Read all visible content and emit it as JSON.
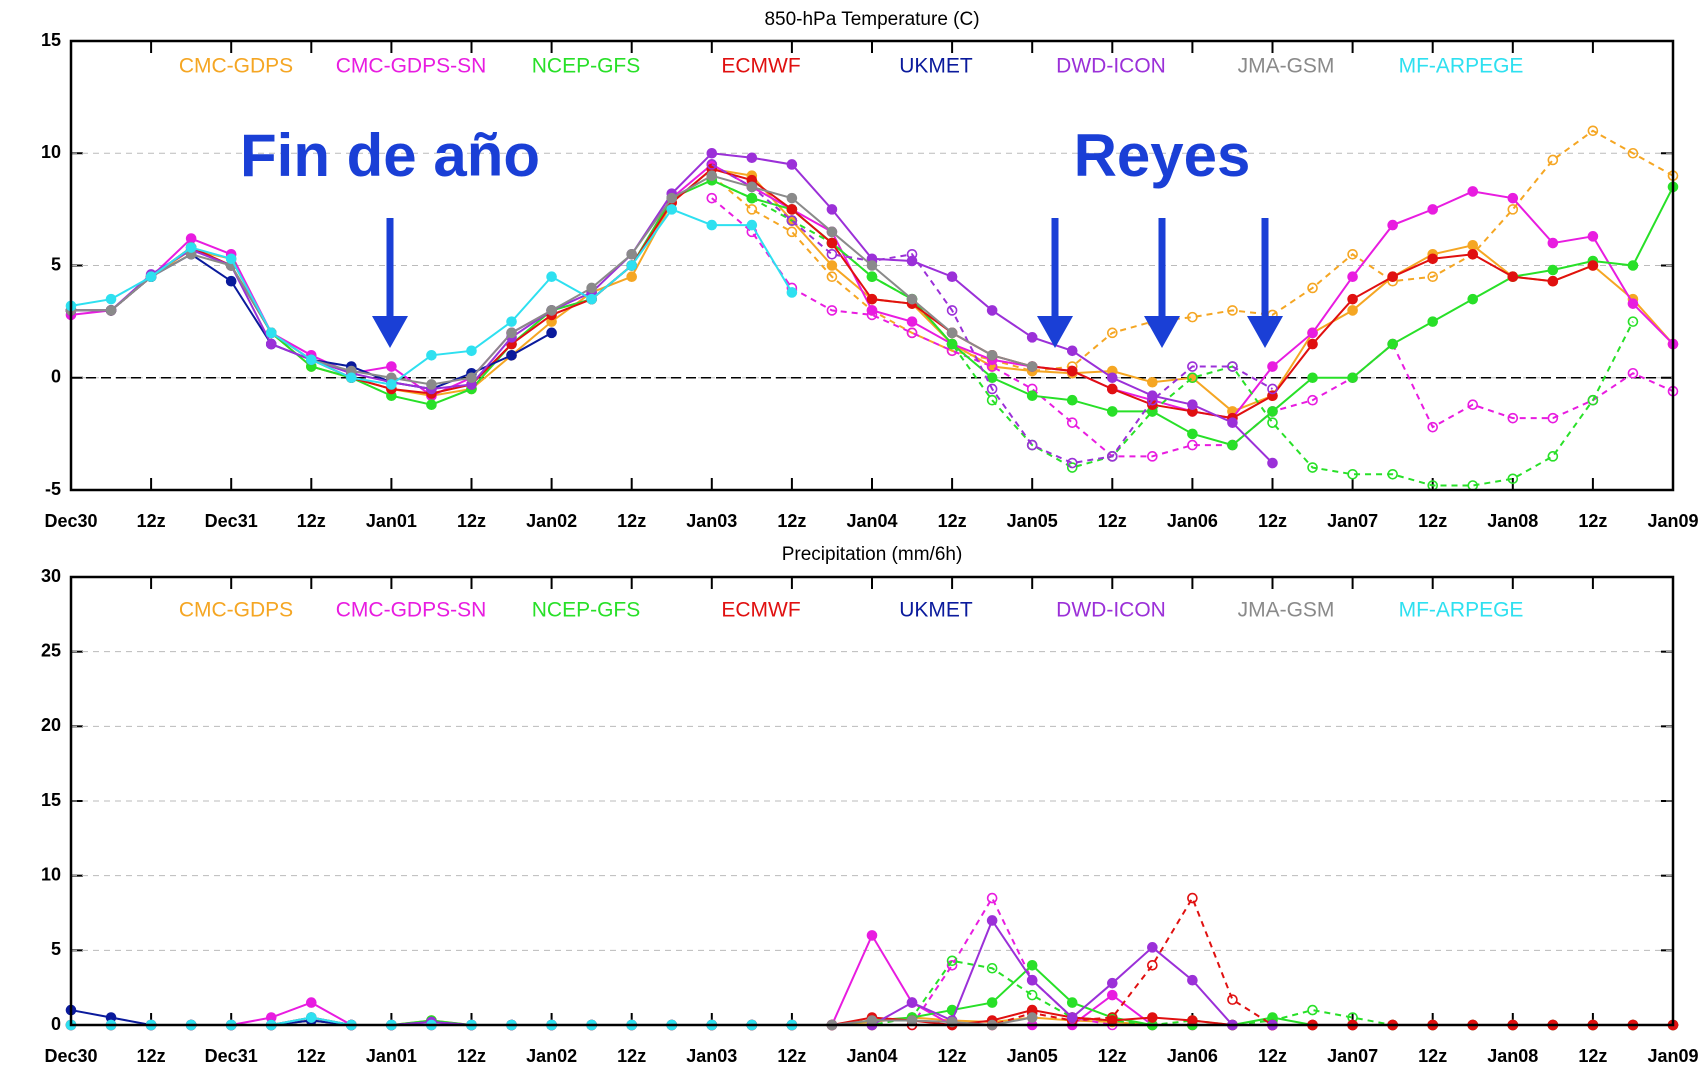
{
  "chart_data": [
    {
      "type": "line",
      "title": "850-hPa Temperature (C)",
      "categories": [
        "Dec30",
        null,
        "12z",
        null,
        "Dec31",
        null,
        "12z",
        null,
        "Jan01",
        null,
        "12z",
        null,
        "Jan02",
        null,
        "12z",
        null,
        "Jan03",
        null,
        "12z",
        null,
        "Jan04",
        null,
        "12z",
        null,
        "Jan05",
        null,
        "12z",
        null,
        "Jan06",
        null,
        "12z",
        null,
        "Jan07",
        null,
        "12z",
        null,
        "Jan08",
        null,
        "12z",
        null,
        "Jan09"
      ],
      "ylim": [
        -5,
        15
      ],
      "yticks": [
        -5,
        0,
        5,
        10,
        15
      ],
      "grid": true,
      "zero_line": true,
      "annotations": [
        "Fin de año",
        "Reyes"
      ],
      "series": [
        {
          "name": "CMC-GDPS",
          "color": "#f5a623",
          "values": [
            3,
            3,
            4.5,
            5.7,
            5.3,
            2,
            0.5,
            0,
            -0.5,
            -0.8,
            -0.5,
            1,
            2.5,
            3.8,
            4.5,
            7.8,
            9.3,
            9,
            7,
            5,
            3.5,
            3.3,
            1.5,
            0.5,
            0.3,
            0.2,
            0.3,
            -0.2,
            0,
            -1.5,
            -0.8,
            2,
            3,
            4.5,
            5.5,
            5.9,
            4.5,
            4.3,
            5,
            3.5,
            1.5
          ],
          "dashed_values": [
            null,
            null,
            null,
            null,
            null,
            null,
            null,
            null,
            null,
            null,
            null,
            null,
            null,
            null,
            null,
            null,
            9,
            7.5,
            6.5,
            4.5,
            3,
            2,
            1.2,
            0.8,
            0.3,
            0.5,
            2,
            2.5,
            2.7,
            3,
            2.8,
            4,
            5.5,
            4.3,
            4.5,
            5.5,
            7.5,
            9.7,
            11,
            10,
            9
          ]
        },
        {
          "name": "CMC-GDPS-SN",
          "color": "#e81ce0",
          "values": [
            2.8,
            3,
            4.5,
            6.2,
            5.5,
            2,
            1,
            0.2,
            0.5,
            -0.8,
            0,
            2,
            3,
            3.5,
            5,
            8,
            9.5,
            8.5,
            7.5,
            6.5,
            3,
            2.5,
            1.5,
            0.8,
            0.5,
            0.3,
            -0.5,
            -1,
            -1.5,
            -1.8,
            0.5,
            2,
            4.5,
            6.8,
            7.5,
            8.3,
            8,
            6,
            6.3,
            3.3,
            1.5
          ],
          "dashed_values": [
            null,
            null,
            null,
            null,
            null,
            null,
            null,
            null,
            null,
            null,
            null,
            null,
            null,
            null,
            null,
            null,
            8,
            6.5,
            4,
            3,
            2.8,
            2,
            1.2,
            0.5,
            -0.5,
            -2,
            -3.5,
            -3.5,
            -3,
            -3,
            -1.5,
            -1,
            0,
            1.5,
            -2.2,
            -1.2,
            -1.8,
            -1.8,
            -1,
            0.2,
            -0.6
          ]
        },
        {
          "name": "NCEP-GFS",
          "color": "#28e028",
          "values": [
            3,
            3,
            4.5,
            5.8,
            5,
            2,
            0.5,
            0,
            -0.8,
            -1.2,
            -0.5,
            1.5,
            3,
            3.5,
            5,
            8,
            8.8,
            8,
            7.5,
            6,
            4.5,
            3.5,
            1.5,
            0,
            -0.8,
            -1,
            -1.5,
            -1.5,
            -2.5,
            -3,
            -1.5,
            0,
            0,
            1.5,
            2.5,
            3.5,
            4.5,
            4.8,
            5.2,
            5,
            8.5
          ],
          "dashed_values": [
            null,
            null,
            null,
            null,
            null,
            null,
            null,
            null,
            null,
            null,
            null,
            null,
            null,
            null,
            null,
            null,
            8.8,
            8,
            7,
            6,
            4.5,
            3.5,
            1.5,
            -1,
            -3,
            -4,
            -3.5,
            -1.5,
            0,
            0.5,
            -2,
            -4,
            -4.3,
            -4.3,
            -4.8,
            -4.8,
            -4.5,
            -3.5,
            -1,
            2.5,
            null
          ]
        },
        {
          "name": "ECMWF",
          "color": "#e01010",
          "values": [
            3,
            3,
            4.5,
            5.8,
            5,
            2,
            0.8,
            0,
            -0.5,
            -0.7,
            -0.3,
            1.5,
            2.8,
            3.5,
            5,
            7.8,
            9.3,
            8.8,
            7.5,
            6,
            3.5,
            3.3,
            2,
            1,
            0.5,
            0.3,
            -0.5,
            -1.2,
            -1.5,
            -1.8,
            -0.8,
            1.5,
            3.5,
            4.5,
            5.3,
            5.5,
            4.5,
            4.3,
            5,
            null,
            null
          ]
        },
        {
          "name": "UKMET",
          "color": "#0a1a9c",
          "values": [
            3,
            3,
            4.5,
            5.5,
            4.3,
            1.5,
            0.8,
            0.5,
            -0.2,
            -0.5,
            0.2,
            1,
            2,
            null,
            null,
            null,
            null,
            null,
            null,
            null,
            null,
            null,
            null,
            null,
            null,
            null,
            null,
            null,
            null,
            null,
            null,
            null,
            null,
            null,
            null,
            null,
            null,
            null,
            null,
            null,
            null
          ]
        },
        {
          "name": "DWD-ICON",
          "color": "#9b30d8",
          "values": [
            3,
            3,
            4.6,
            5.7,
            5,
            1.5,
            0.8,
            0.2,
            -0.2,
            -0.5,
            -0.3,
            1.8,
            3,
            3.8,
            5.5,
            8.2,
            10,
            9.8,
            9.5,
            7.5,
            5.3,
            5.2,
            4.5,
            3,
            1.8,
            1.2,
            0,
            -0.8,
            -1.2,
            -2,
            -3.8,
            null,
            null,
            null,
            null,
            null,
            null,
            null,
            null,
            null,
            null
          ],
          "dashed_values": [
            null,
            null,
            null,
            null,
            null,
            null,
            null,
            null,
            null,
            null,
            null,
            null,
            null,
            null,
            null,
            null,
            9.5,
            8.5,
            7,
            5.5,
            5.2,
            5.5,
            3,
            -0.5,
            -3,
            -3.8,
            -3.5,
            -1,
            0.5,
            0.5,
            -0.5,
            null,
            null,
            null,
            null,
            null,
            null,
            null,
            null,
            null,
            null
          ]
        },
        {
          "name": "JMA-GSM",
          "color": "#8a8a8a",
          "values": [
            3,
            3,
            4.5,
            5.5,
            5,
            2,
            0.8,
            0.3,
            0,
            -0.3,
            0,
            2,
            3,
            4,
            5.5,
            8,
            9,
            8.5,
            8,
            6.5,
            5,
            3.5,
            2,
            1,
            0.5,
            null,
            null,
            null,
            null,
            null,
            null,
            null,
            null,
            null,
            null,
            null,
            null,
            null,
            null,
            null,
            null
          ]
        },
        {
          "name": "MF-ARPEGE",
          "color": "#2ee0f0",
          "values": [
            3.2,
            3.5,
            4.5,
            5.8,
            5.3,
            2,
            0.8,
            0,
            -0.3,
            1,
            1.2,
            2.5,
            4.5,
            3.5,
            5,
            7.5,
            6.8,
            6.8,
            3.8,
            null,
            null,
            null,
            null,
            null,
            null,
            null,
            null,
            null,
            null,
            null,
            null,
            null,
            null,
            null,
            null,
            null,
            null,
            null,
            null,
            null,
            null
          ]
        }
      ]
    },
    {
      "type": "line",
      "title": "Precipitation (mm/6h)",
      "categories": [
        "Dec30",
        null,
        "12z",
        null,
        "Dec31",
        null,
        "12z",
        null,
        "Jan01",
        null,
        "12z",
        null,
        "Jan02",
        null,
        "12z",
        null,
        "Jan03",
        null,
        "12z",
        null,
        "Jan04",
        null,
        "12z",
        null,
        "Jan05",
        null,
        "12z",
        null,
        "Jan06",
        null,
        "12z",
        null,
        "Jan07",
        null,
        "12z",
        null,
        "Jan08",
        null,
        "12z",
        null,
        "Jan09"
      ],
      "ylim": [
        0,
        30
      ],
      "yticks": [
        0,
        5,
        10,
        15,
        20,
        25,
        30
      ],
      "grid": true,
      "series": [
        {
          "name": "CMC-GDPS",
          "color": "#f5a623",
          "values": [
            0,
            0,
            0,
            0,
            0,
            0,
            0.5,
            0,
            0,
            0.3,
            0,
            0,
            0,
            0,
            0,
            0,
            0,
            0,
            0,
            0,
            0.2,
            0.5,
            0.3,
            0.2,
            0.5,
            0.3,
            0.2,
            0,
            0,
            0,
            0,
            0,
            0,
            0,
            0,
            0,
            0,
            0,
            0,
            0,
            0
          ]
        },
        {
          "name": "CMC-GDPS-SN",
          "color": "#e81ce0",
          "values": [
            0,
            0,
            0,
            0,
            0,
            0.5,
            1.5,
            0,
            0,
            0,
            0,
            0,
            0,
            0,
            0,
            0,
            0,
            0,
            0,
            0,
            6,
            1.5,
            0,
            0,
            0,
            0,
            2,
            0,
            0,
            0,
            0,
            0,
            0,
            0,
            0,
            0,
            0,
            0,
            0,
            0,
            0
          ],
          "dashed_values": [
            null,
            null,
            null,
            null,
            null,
            null,
            null,
            null,
            null,
            null,
            null,
            null,
            null,
            null,
            null,
            null,
            0,
            0,
            0,
            0,
            0,
            0,
            4,
            8.5,
            3,
            0.5,
            0,
            0,
            0,
            0,
            0,
            0,
            0,
            0,
            0,
            0,
            0,
            0,
            0,
            0,
            0
          ]
        },
        {
          "name": "NCEP-GFS",
          "color": "#28e028",
          "values": [
            0,
            0,
            0,
            0,
            0,
            0,
            0.3,
            0,
            0,
            0.3,
            0,
            0,
            0,
            0,
            0,
            0,
            0,
            0,
            0,
            0,
            0.3,
            0.5,
            1,
            1.5,
            4,
            1.5,
            0.5,
            0,
            0,
            0,
            0.5,
            0,
            0,
            0,
            0,
            0,
            0,
            0,
            0,
            0,
            0
          ],
          "dashed_values": [
            null,
            null,
            null,
            null,
            null,
            null,
            null,
            null,
            null,
            null,
            null,
            null,
            null,
            null,
            null,
            null,
            0,
            0,
            0,
            0,
            0,
            0.5,
            4.3,
            3.8,
            2,
            0.5,
            0.3,
            0,
            0.3,
            0,
            0.3,
            1,
            0.5,
            0,
            0,
            0,
            0,
            0,
            0,
            0,
            0
          ]
        },
        {
          "name": "ECMWF",
          "color": "#e01010",
          "values": [
            0,
            0,
            0,
            0,
            0,
            0,
            0.3,
            0,
            0,
            0,
            0,
            0,
            0,
            0,
            0,
            0,
            0,
            0,
            0,
            0,
            0.5,
            0.3,
            0,
            0.3,
            1,
            0.5,
            0.3,
            0.5,
            0.3,
            0,
            0,
            0,
            0,
            0,
            0,
            0,
            0,
            0,
            0,
            0,
            0
          ],
          "dashed_values": [
            null,
            null,
            null,
            null,
            null,
            null,
            null,
            null,
            null,
            null,
            null,
            null,
            null,
            null,
            null,
            null,
            0,
            0,
            0,
            0,
            0,
            0,
            0,
            0,
            0.8,
            0.3,
            0.5,
            4,
            8.5,
            1.7,
            0,
            0,
            0,
            0,
            0,
            0,
            0,
            0,
            0,
            0,
            0
          ]
        },
        {
          "name": "UKMET",
          "color": "#0a1a9c",
          "values": [
            1,
            0.5,
            0,
            0,
            0,
            0,
            0.3,
            0,
            0,
            0.2,
            0,
            0,
            0,
            null,
            null,
            null,
            null,
            null,
            null,
            null,
            null,
            null,
            null,
            null,
            null,
            null,
            null,
            null,
            null,
            null,
            null,
            null,
            null,
            null,
            null,
            null,
            null,
            null,
            null,
            null,
            null
          ]
        },
        {
          "name": "DWD-ICON",
          "color": "#9b30d8",
          "values": [
            0,
            0,
            0,
            0,
            0,
            0,
            0.5,
            0,
            0,
            0.2,
            0,
            0,
            0,
            0,
            0,
            0,
            0,
            0,
            0,
            0,
            0,
            1.5,
            0.3,
            7,
            3,
            0.5,
            2.8,
            5.2,
            3,
            0,
            0,
            null,
            null,
            null,
            null,
            null,
            null,
            null,
            null,
            null,
            null
          ]
        },
        {
          "name": "JMA-GSM",
          "color": "#8a8a8a",
          "values": [
            0,
            0,
            0,
            0,
            0,
            0,
            0.5,
            0,
            0,
            0,
            0,
            0,
            0,
            0,
            0,
            0,
            0,
            0,
            0,
            0,
            0.3,
            0.3,
            0.2,
            0,
            0.5,
            null,
            null,
            null,
            null,
            null,
            null,
            null,
            null,
            null,
            null,
            null,
            null,
            null,
            null,
            null,
            null
          ]
        },
        {
          "name": "MF-ARPEGE",
          "color": "#2ee0f0",
          "values": [
            0,
            0,
            0,
            0,
            0,
            0,
            0.5,
            0,
            0,
            0,
            0,
            0,
            0,
            0,
            0,
            0,
            0,
            0,
            0,
            null,
            null,
            null,
            null,
            null,
            null,
            null,
            null,
            null,
            null,
            null,
            null,
            null,
            null,
            null,
            null,
            null,
            null,
            null,
            null,
            null,
            null
          ]
        }
      ]
    }
  ]
}
